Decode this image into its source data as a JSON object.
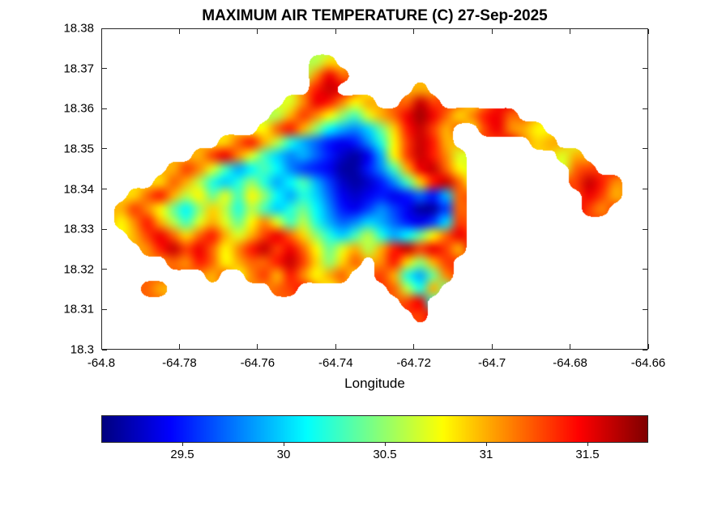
{
  "chart_data": {
    "type": "heatmap",
    "title": "MAXIMUM AIR TEMPERATURE (C) 27-Sep-2025",
    "xlabel": "Longitude",
    "ylabel": "",
    "units": "C",
    "colormap": "jet",
    "color_limits": [
      29.1,
      31.8
    ],
    "x_range": [
      -64.8,
      -64.66
    ],
    "y_range": [
      18.3,
      18.38
    ],
    "x_ticks": [
      {
        "label": "-64.8",
        "value": -64.8
      },
      {
        "label": "-64.78",
        "value": -64.78
      },
      {
        "label": "-64.76",
        "value": -64.76
      },
      {
        "label": "-64.74",
        "value": -64.74
      },
      {
        "label": "-64.72",
        "value": -64.72
      },
      {
        "label": "-64.7",
        "value": -64.7
      },
      {
        "label": "-64.68",
        "value": -64.68
      },
      {
        "label": "-64.66",
        "value": -64.66
      }
    ],
    "y_ticks": [
      {
        "label": "18.38",
        "value": 18.38
      },
      {
        "label": "18.37",
        "value": 18.37
      },
      {
        "label": "18.36",
        "value": 18.36
      },
      {
        "label": "18.35",
        "value": 18.35
      },
      {
        "label": "18.34",
        "value": 18.34
      },
      {
        "label": "18.33",
        "value": 18.33
      },
      {
        "label": "18.32",
        "value": 18.32
      },
      {
        "label": "18.31",
        "value": 18.31
      },
      {
        "label": "18.3",
        "value": 18.3
      }
    ],
    "colorbar_orientation": "horizontal-below",
    "colorbar_ticks": [
      {
        "label": "29.5",
        "value": 29.5
      },
      {
        "label": "30",
        "value": 30
      },
      {
        "label": "30.5",
        "value": 30.5
      },
      {
        "label": "31",
        "value": 31
      },
      {
        "label": "31.5",
        "value": 31.5
      }
    ],
    "colors": {
      "background": "#ffffff",
      "axis": "#262626",
      "text": "#000000",
      "no_data": "#ffffff"
    },
    "grid": {
      "rows": 24,
      "cols": 42,
      "lon_origin": -64.8,
      "lat_origin": 18.38,
      "dlon": 0.0033333,
      "dlat": -0.0033333,
      "row_segments": [
        {
          "i": 2,
          "segments": [
            {
              "j": 16,
              "v": [
                30.6,
                30.9
              ]
            }
          ]
        },
        {
          "i": 3,
          "segments": [
            {
              "j": 16,
              "v": [
                31.1,
                31.5,
                31.2
              ]
            }
          ]
        },
        {
          "i": 4,
          "segments": [
            {
              "j": 16,
              "v": [
                31.4,
                31.6
              ]
            },
            {
              "j": 24,
              "v": [
                31.0
              ]
            }
          ]
        },
        {
          "i": 5,
          "segments": [
            {
              "j": 14,
              "v": [
                30.7,
                31.1,
                31.5,
                31.4,
                31.1,
                30.8,
                31.0
              ]
            },
            {
              "j": 23,
              "v": [
                31.2,
                31.6,
                31.3
              ]
            }
          ]
        },
        {
          "i": 6,
          "segments": [
            {
              "j": 13,
              "v": [
                30.6,
                31.0,
                31.3,
                31.1,
                30.8,
                30.5,
                30.3,
                30.7,
                31.0,
                31.2,
                31.5,
                31.7,
                31.5,
                31.2,
                30.9,
                31.1,
                31.4,
                31.5,
                31.2
              ]
            }
          ]
        },
        {
          "i": 7,
          "segments": [
            {
              "j": 12,
              "v": [
                30.8,
                31.2,
                31.4,
                31.0,
                30.5,
                30.1,
                29.9,
                29.8,
                30.0,
                30.4,
                30.9,
                31.4,
                31.6,
                31.3,
                31.0
              ]
            },
            {
              "j": 29,
              "v": [
                31.3,
                31.5,
                31.1,
                31.0,
                30.8
              ]
            }
          ]
        },
        {
          "i": 8,
          "segments": [
            {
              "j": 9,
              "v": [
                30.9,
                31.2,
                31.4,
                31.0,
                30.6,
                30.2,
                29.9,
                29.7,
                29.5,
                29.4,
                29.5,
                29.8,
                30.2,
                30.8,
                31.3,
                31.6,
                31.4,
                31.0
              ]
            },
            {
              "j": 33,
              "v": [
                30.9,
                31.0
              ]
            }
          ]
        },
        {
          "i": 9,
          "segments": [
            {
              "j": 7,
              "v": [
                31.0,
                31.3,
                31.5,
                31.1,
                30.7,
                30.3,
                30.0,
                29.8,
                29.9,
                29.7,
                29.5,
                29.3,
                29.2,
                29.4,
                29.9,
                30.8,
                31.3,
                31.6,
                31.4,
                31.1,
                30.7
              ]
            },
            {
              "j": 35,
              "v": [
                30.7,
                31.0
              ]
            }
          ]
        },
        {
          "i": 10,
          "segments": [
            {
              "j": 5,
              "v": [
                31.0,
                31.3,
                31.1,
                30.7,
                30.3,
                29.9,
                30.1,
                30.3,
                30.1,
                29.8,
                29.6,
                29.5,
                29.4,
                29.2,
                29.2,
                29.5,
                29.8,
                30.3,
                31.0,
                31.5,
                31.6,
                31.2,
                30.8
              ]
            },
            {
              "j": 36,
              "v": [
                31.2,
                31.3
              ]
            }
          ]
        },
        {
          "i": 11,
          "segments": [
            {
              "j": 4,
              "v": [
                30.9,
                31.2,
                31.0,
                30.6,
                30.2,
                30.0,
                30.2,
                30.5,
                30.2,
                29.9,
                30.1,
                30.3,
                29.9,
                29.6,
                29.3,
                29.2,
                29.3,
                29.5,
                29.8,
                30.3,
                30.9,
                31.4,
                31.6,
                31.2
              ]
            },
            {
              "j": 36,
              "v": [
                31.3,
                31.6,
                31.4,
                31.1
              ]
            }
          ]
        },
        {
          "i": 12,
          "segments": [
            {
              "j": 2,
              "v": [
                30.9,
                31.2,
                31.4,
                31.0,
                30.6,
                30.8,
                30.4,
                30.7,
                30.3,
                30.8,
                30.5,
                30.1,
                29.9,
                30.2,
                30.0,
                29.7,
                29.4,
                29.3,
                29.4,
                29.5,
                29.4,
                29.5,
                29.7,
                29.5,
                29.9,
                31.2
              ]
            },
            {
              "j": 37,
              "v": [
                31.5,
                31.3,
                31.0
              ]
            }
          ]
        },
        {
          "i": 13,
          "segments": [
            {
              "j": 1,
              "v": [
                31.0,
                31.3,
                31.1,
                30.8,
                30.4,
                30.1,
                30.5,
                30.9,
                30.6,
                30.2,
                30.6,
                30.3,
                30.0,
                30.2,
                30.4,
                30.1,
                29.8,
                29.5,
                29.4,
                29.6,
                29.8,
                29.6,
                29.4,
                29.2,
                29.2,
                29.6,
                31.2
              ]
            },
            {
              "j": 37,
              "v": [
                31.3,
                31.1
              ]
            }
          ]
        },
        {
          "i": 14,
          "segments": [
            {
              "j": 1,
              "v": [
                30.8,
                31.1,
                31.4,
                31.0,
                30.6,
                30.3,
                30.7,
                31.0,
                30.7,
                30.4,
                30.8,
                31.1,
                30.7,
                30.3,
                30.6,
                30.2,
                29.9,
                29.7,
                29.8,
                30.0,
                29.9,
                29.7,
                29.5,
                29.4,
                29.6,
                30.0,
                31.3
              ]
            }
          ]
        },
        {
          "i": 15,
          "segments": [
            {
              "j": 2,
              "v": [
                31.0,
                31.3,
                31.5,
                31.2,
                30.9,
                31.2,
                31.4,
                31.0,
                30.7,
                31.0,
                31.3,
                31.5,
                31.2,
                30.9,
                30.5,
                30.2,
                30.0,
                30.3,
                30.6,
                30.2,
                29.9,
                30.1,
                30.4,
                30.8,
                31.2,
                31.5
              ]
            }
          ]
        },
        {
          "i": 16,
          "segments": [
            {
              "j": 3,
              "v": [
                31.1,
                31.4,
                31.6,
                31.3,
                31.5,
                31.2,
                30.8,
                31.1,
                31.4,
                31.6,
                31.3,
                31.5,
                31.2,
                30.8,
                30.4,
                30.7,
                31.0,
                30.6,
                31.0,
                31.4,
                31.6,
                31.3,
                31.5,
                31.3,
                31.0
              ]
            }
          ]
        },
        {
          "i": 17,
          "segments": [
            {
              "j": 5,
              "v": [
                31.2,
                31.1,
                31.4,
                31.2,
                30.8,
                31.0,
                31.2,
                31.2,
                31.4,
                31.6,
                31.3,
                30.9,
                30.5,
                30.9,
                31.2
              ]
            },
            {
              "j": 21,
              "v": [
                31.1,
                31.4,
                30.9,
                30.5,
                31.0,
                31.3
              ]
            }
          ]
        },
        {
          "i": 18,
          "segments": [
            {
              "j": 8,
              "v": [
                31.0
              ]
            },
            {
              "j": 11,
              "v": [
                31.1,
                31.3,
                31.0,
                31.4,
                31.1,
                30.8,
                31.0,
                31.2
              ]
            },
            {
              "j": 21,
              "v": [
                31.3,
                31.0,
                30.2,
                29.9,
                30.4,
                31.1
              ]
            }
          ]
        },
        {
          "i": 19,
          "segments": [
            {
              "j": 3,
              "v": [
                31.2,
                31.0
              ]
            },
            {
              "j": 13,
              "v": [
                31.2,
                31.3
              ]
            },
            {
              "j": 22,
              "v": [
                31.2,
                30.6,
                30.2,
                31.0
              ]
            }
          ]
        },
        {
          "i": 20,
          "segments": [
            {
              "j": 23,
              "v": [
                31.3,
                31.5
              ]
            }
          ]
        },
        {
          "i": 21,
          "segments": [
            {
              "j": 24,
              "v": [
                31.3
              ]
            }
          ]
        }
      ]
    }
  }
}
